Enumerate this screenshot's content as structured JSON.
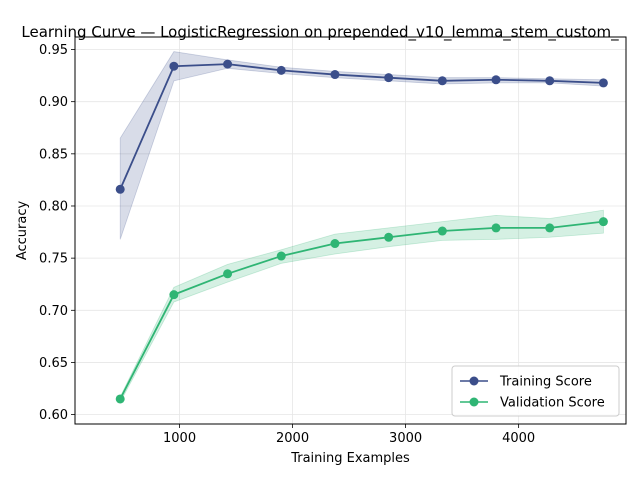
{
  "chart_data": {
    "type": "line",
    "title": "Learning Curve — LogisticRegression on prepended_v10_lemma_stem_custom_",
    "xlabel": "Training Examples",
    "ylabel": "Accuracy",
    "xlim": [
      75,
      4950
    ],
    "ylim": [
      0.591,
      0.962
    ],
    "x_ticks": [
      1000,
      2000,
      3000,
      4000
    ],
    "y_ticks": [
      0.6,
      0.65,
      0.7,
      0.75,
      0.8,
      0.85,
      0.9,
      0.95
    ],
    "x_tick_labels": [
      "1000",
      "2000",
      "3000",
      "4000"
    ],
    "y_tick_labels": [
      "0.60",
      "0.65",
      "0.70",
      "0.75",
      "0.80",
      "0.85",
      "0.90",
      "0.95"
    ],
    "grid": true,
    "legend_position": "lower-right",
    "x": [
      475,
      950,
      1425,
      1900,
      2375,
      2850,
      3325,
      3800,
      4275,
      4750
    ],
    "series": [
      {
        "name": "Training Score",
        "color": "#3b4e8a",
        "values": [
          0.816,
          0.934,
          0.936,
          0.93,
          0.926,
          0.923,
          0.92,
          0.921,
          0.92,
          0.918
        ],
        "upper": [
          0.865,
          0.948,
          0.94,
          0.933,
          0.929,
          0.926,
          0.923,
          0.923,
          0.922,
          0.921
        ],
        "lower": [
          0.768,
          0.92,
          0.932,
          0.927,
          0.923,
          0.92,
          0.917,
          0.918,
          0.918,
          0.915
        ]
      },
      {
        "name": "Validation Score",
        "color": "#2fb574",
        "values": [
          0.615,
          0.715,
          0.735,
          0.752,
          0.764,
          0.77,
          0.776,
          0.779,
          0.779,
          0.785
        ],
        "upper": [
          0.617,
          0.722,
          0.744,
          0.758,
          0.773,
          0.779,
          0.785,
          0.791,
          0.788,
          0.796
        ],
        "lower": [
          0.612,
          0.708,
          0.727,
          0.745,
          0.754,
          0.761,
          0.767,
          0.768,
          0.77,
          0.774
        ]
      }
    ]
  }
}
